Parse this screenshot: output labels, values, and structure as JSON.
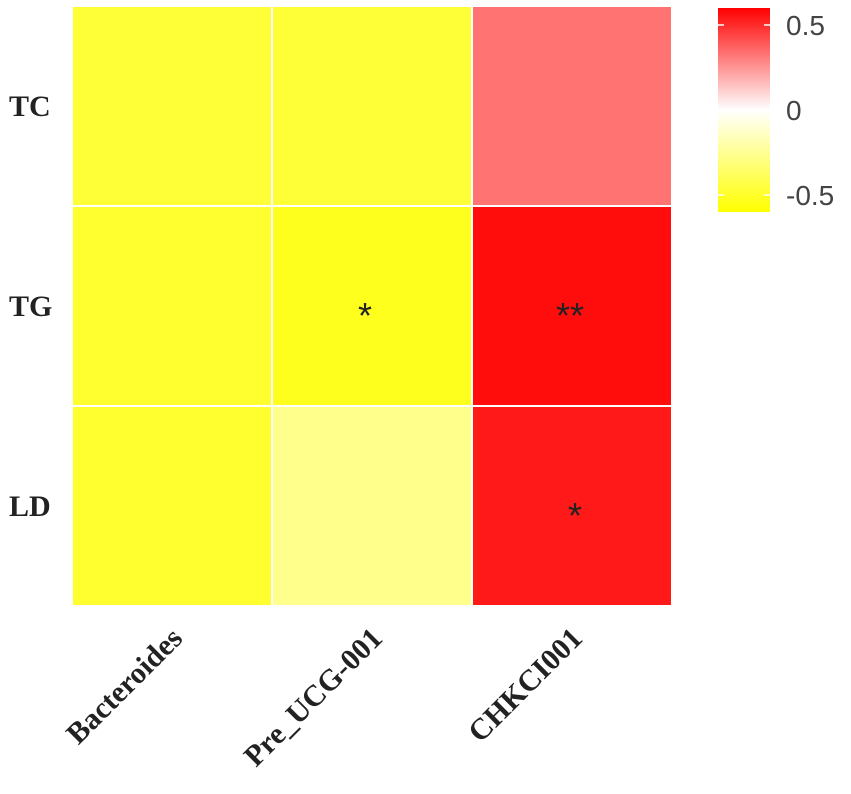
{
  "chart_data": {
    "type": "heatmap",
    "title": "",
    "xlabel": "",
    "ylabel": "",
    "rows": [
      "TC",
      "TG",
      "LD"
    ],
    "columns": [
      "Bacteroides",
      "Pre_UCG-001",
      "CHKCI001"
    ],
    "values": [
      [
        -0.47,
        -0.47,
        0.33
      ],
      [
        -0.49,
        -0.53,
        0.57
      ],
      [
        -0.49,
        -0.27,
        0.54
      ]
    ],
    "annotations": [
      [
        "",
        "",
        ""
      ],
      [
        "",
        "*",
        "**"
      ],
      [
        "",
        "",
        "*"
      ]
    ],
    "color_scale": {
      "range": [
        -0.6,
        0.6
      ],
      "ticks": [
        0.5,
        0,
        -0.5
      ],
      "tick_labels": [
        "0.5",
        "0",
        "-0.5"
      ],
      "low_color": "#ffff00",
      "mid_color": "#ffffff",
      "high_color": "#ff0000"
    },
    "legend_position": "top-right",
    "grid": false
  }
}
